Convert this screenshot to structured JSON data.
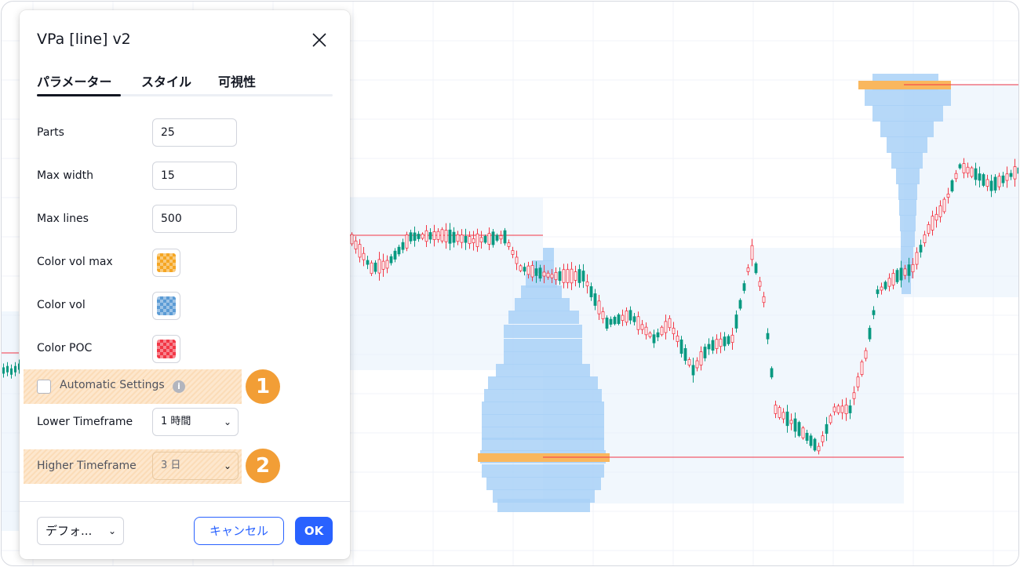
{
  "dialog": {
    "title": "VPa [line] v2",
    "tabs": [
      {
        "label": "パラメーター",
        "active": true
      },
      {
        "label": "スタイル",
        "active": false
      },
      {
        "label": "可視性",
        "active": false
      }
    ],
    "fields": {
      "parts": {
        "label": "Parts",
        "value": "25"
      },
      "max_width": {
        "label": "Max width",
        "value": "15"
      },
      "max_lines": {
        "label": "Max lines",
        "value": "500"
      },
      "color_vol_max": {
        "label": "Color vol max",
        "color": "#f5a623"
      },
      "color_vol": {
        "label": "Color vol",
        "color": "#5b9bd5"
      },
      "color_poc": {
        "label": "Color POC",
        "color": "#f23645"
      },
      "automatic_settings": {
        "label": "Automatic Settings",
        "checked": false
      },
      "lower_timeframe": {
        "label": "Lower Timeframe",
        "value": "1 時間"
      },
      "higher_timeframe": {
        "label": "Higher Timeframe",
        "value": "3 日",
        "disabled": true
      }
    },
    "footer": {
      "defaults_label": "デフォ...",
      "cancel_label": "キャンセル",
      "ok_label": "OK"
    }
  },
  "badges": [
    "1",
    "2"
  ],
  "colors": {
    "accent": "#2962ff",
    "badge": "#f29e36",
    "volume_profile": "#a9d1f7",
    "poc_bar": "#f9b75e",
    "poc_line": "#f23645",
    "candle_up": "#089981",
    "candle_down": "#f23645"
  }
}
